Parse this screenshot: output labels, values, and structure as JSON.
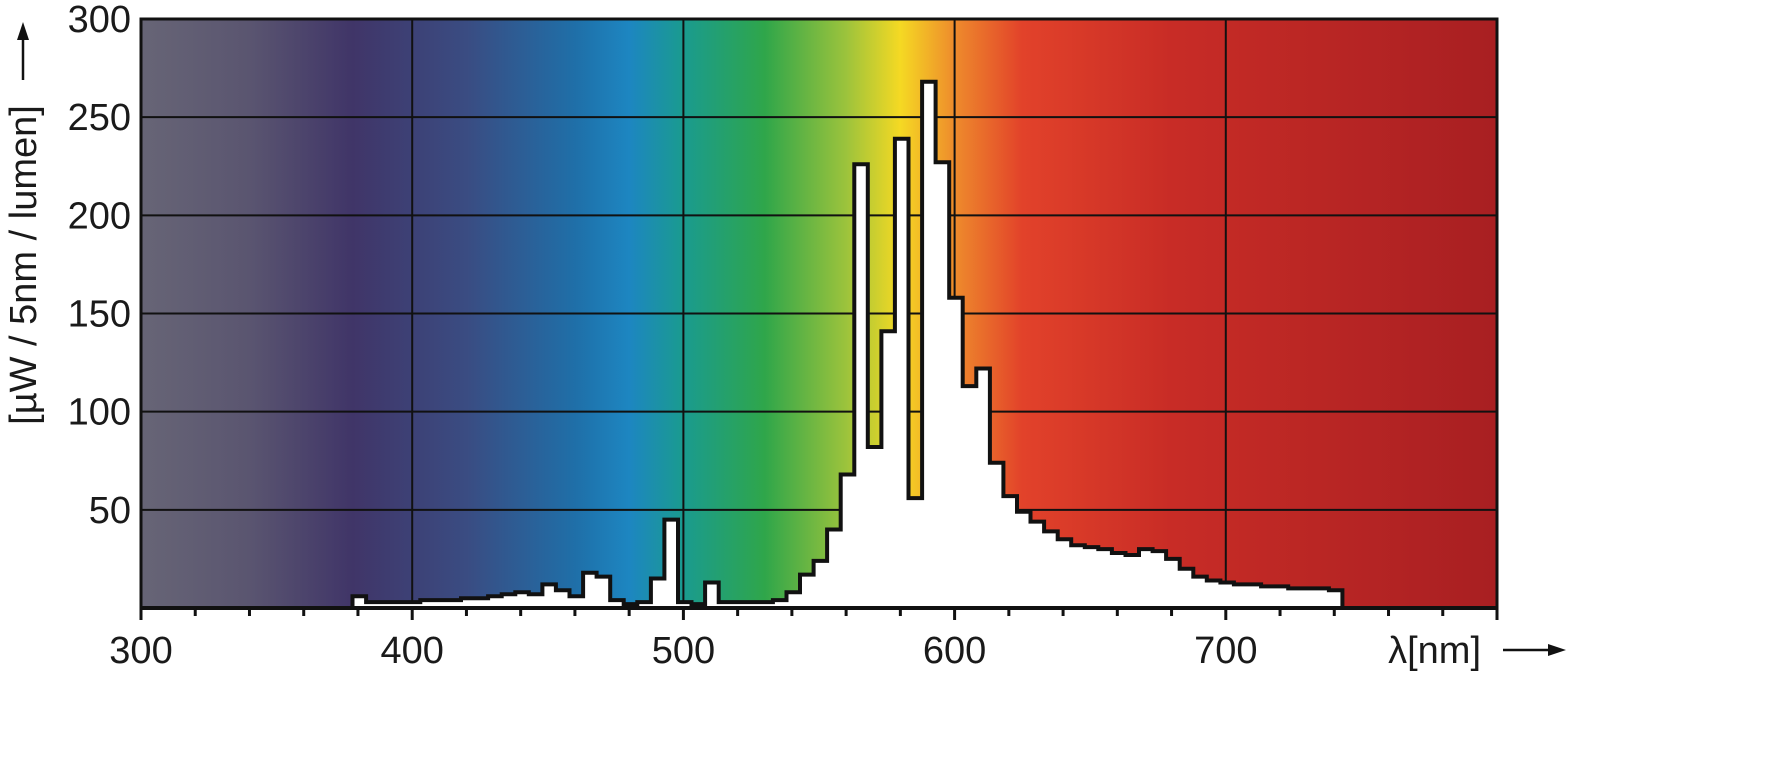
{
  "chart_data": {
    "type": "area",
    "title": "",
    "xlabel": "λ[nm]",
    "ylabel": "[µW / 5nm / lumen]",
    "xlim": [
      300,
      800
    ],
    "ylim": [
      0,
      300
    ],
    "grid": true,
    "x_ticks": [
      300,
      400,
      500,
      600,
      700
    ],
    "y_ticks": [
      50,
      100,
      150,
      200,
      250,
      300
    ],
    "x_tick_labels": [
      "300",
      "400",
      "500",
      "600",
      "700"
    ],
    "y_tick_labels": [
      "50",
      "100",
      "150",
      "200",
      "250",
      "300"
    ],
    "background": "visible spectrum color gradient",
    "series": [
      {
        "step_width_nm": 5,
        "x": [
          378,
          383,
          388,
          393,
          398,
          403,
          408,
          413,
          418,
          423,
          428,
          433,
          438,
          443,
          448,
          453,
          458,
          463,
          468,
          473,
          478,
          483,
          488,
          493,
          498,
          503,
          508,
          513,
          518,
          523,
          528,
          533,
          538,
          543,
          548,
          553,
          558,
          563,
          568,
          573,
          578,
          583,
          588,
          593,
          598,
          603,
          608,
          613,
          618,
          623,
          628,
          633,
          638,
          643,
          648,
          653,
          658,
          663,
          668,
          673,
          678,
          683,
          688,
          693,
          698,
          703,
          708,
          713,
          718,
          723,
          728,
          733,
          738
        ],
        "values": [
          6,
          3,
          3,
          3,
          3,
          4,
          4,
          4,
          5,
          5,
          6,
          7,
          8,
          7,
          12,
          9,
          6,
          18,
          16,
          4,
          2,
          3,
          15,
          45,
          3,
          2,
          13,
          3,
          3,
          3,
          3,
          4,
          8,
          17,
          24,
          40,
          68,
          226,
          82,
          141,
          239,
          56,
          268,
          227,
          158,
          113,
          122,
          74,
          57,
          49,
          44,
          39,
          35,
          32,
          31,
          30,
          28,
          27,
          30,
          29,
          25,
          20,
          16,
          14,
          13,
          12,
          12,
          11,
          11,
          10,
          10,
          10,
          9
        ]
      }
    ],
    "colors": {
      "outline": "#111111",
      "fill_under_curve": "#ffffff",
      "grid": "#111111",
      "gradient_stops": [
        {
          "nm": 300,
          "color": "#676576"
        },
        {
          "nm": 340,
          "color": "#5a5570"
        },
        {
          "nm": 378,
          "color": "#403568"
        },
        {
          "nm": 420,
          "color": "#3a4c82"
        },
        {
          "nm": 460,
          "color": "#1f6fa8"
        },
        {
          "nm": 480,
          "color": "#1d86c1"
        },
        {
          "nm": 500,
          "color": "#1a9b8f"
        },
        {
          "nm": 530,
          "color": "#2fa64a"
        },
        {
          "nm": 560,
          "color": "#9cc33c"
        },
        {
          "nm": 580,
          "color": "#f5d923"
        },
        {
          "nm": 600,
          "color": "#ee8b2c"
        },
        {
          "nm": 625,
          "color": "#e2422a"
        },
        {
          "nm": 680,
          "color": "#c82c26"
        },
        {
          "nm": 800,
          "color": "#a81f22"
        }
      ]
    }
  }
}
